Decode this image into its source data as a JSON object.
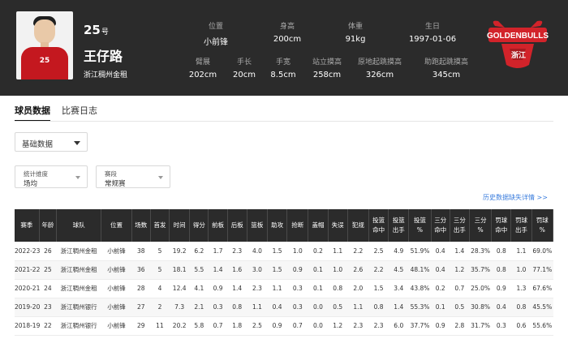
{
  "player": {
    "number": "25",
    "number_suffix": "号",
    "name": "王仔路",
    "team": "浙江稠州金租",
    "jersey_text": "25"
  },
  "header_stats_row1": [
    {
      "label": "位置",
      "value": "小前锋"
    },
    {
      "label": "身高",
      "value": "200cm"
    },
    {
      "label": "体重",
      "value": "91kg"
    },
    {
      "label": "生日",
      "value": "1997-01-06"
    }
  ],
  "header_stats_row2": [
    {
      "label": "臂展",
      "value": "202cm"
    },
    {
      "label": "手长",
      "value": "20cm"
    },
    {
      "label": "手宽",
      "value": "8.5cm"
    },
    {
      "label": "站立摸高",
      "value": "258cm"
    },
    {
      "label": "原地起跳摸高",
      "value": "326cm"
    },
    {
      "label": "助跑起跳摸高",
      "value": "345cm"
    }
  ],
  "logo": {
    "text_top": "GOLDENBULLS",
    "text_bottom": "浙江",
    "color": "#d2232a"
  },
  "tabs": [
    {
      "label": "球员数据",
      "active": true
    },
    {
      "label": "比赛日志",
      "active": false
    }
  ],
  "filters": {
    "basic": {
      "value": "基础数据"
    },
    "dimension": {
      "label": "统计维度",
      "value": "场均"
    },
    "phase": {
      "label": "赛段",
      "value": "常规赛"
    }
  },
  "history_link": "历史数据缺失详情 >>",
  "table": {
    "headers": [
      [
        "赛季"
      ],
      [
        "年龄"
      ],
      [
        "球队"
      ],
      [
        "位置"
      ],
      [
        "场数"
      ],
      [
        "首发"
      ],
      [
        "时间"
      ],
      [
        "得分"
      ],
      [
        "前板"
      ],
      [
        "后板"
      ],
      [
        "篮板"
      ],
      [
        "助攻"
      ],
      [
        "抢断"
      ],
      [
        "盖帽"
      ],
      [
        "失误"
      ],
      [
        "犯规"
      ],
      [
        "投篮",
        "命中"
      ],
      [
        "投篮",
        "出手"
      ],
      [
        "投篮",
        "%"
      ],
      [
        "三分",
        "命中"
      ],
      [
        "三分",
        "出手"
      ],
      [
        "三分",
        "%"
      ],
      [
        "罚球",
        "命中"
      ],
      [
        "罚球",
        "出手"
      ],
      [
        "罚球",
        "%"
      ]
    ],
    "rows": [
      [
        "2022-23",
        "26",
        "浙江稠州金租",
        "小前锋",
        "38",
        "5",
        "19.2",
        "6.2",
        "1.7",
        "2.3",
        "4.0",
        "1.5",
        "1.0",
        "0.2",
        "1.1",
        "2.2",
        "2.5",
        "4.9",
        "51.9%",
        "0.4",
        "1.4",
        "28.3%",
        "0.8",
        "1.1",
        "69.0%"
      ],
      [
        "2021-22",
        "25",
        "浙江稠州金租",
        "小前锋",
        "36",
        "5",
        "18.1",
        "5.5",
        "1.4",
        "1.6",
        "3.0",
        "1.5",
        "0.9",
        "0.1",
        "1.0",
        "2.6",
        "2.2",
        "4.5",
        "48.1%",
        "0.4",
        "1.2",
        "35.7%",
        "0.8",
        "1.0",
        "77.1%"
      ],
      [
        "2020-21",
        "24",
        "浙江稠州金租",
        "小前锋",
        "28",
        "4",
        "12.4",
        "4.1",
        "0.9",
        "1.4",
        "2.3",
        "1.1",
        "0.3",
        "0.1",
        "0.8",
        "2.0",
        "1.5",
        "3.4",
        "43.8%",
        "0.2",
        "0.7",
        "25.0%",
        "0.9",
        "1.3",
        "67.6%"
      ],
      [
        "2019-20",
        "23",
        "浙江稠州银行",
        "小前锋",
        "27",
        "2",
        "7.3",
        "2.1",
        "0.3",
        "0.8",
        "1.1",
        "0.4",
        "0.3",
        "0.0",
        "0.5",
        "1.1",
        "0.8",
        "1.4",
        "55.3%",
        "0.1",
        "0.5",
        "30.8%",
        "0.4",
        "0.8",
        "45.5%"
      ],
      [
        "2018-19",
        "22",
        "浙江稠州银行",
        "小前锋",
        "29",
        "11",
        "20.2",
        "5.8",
        "0.7",
        "1.8",
        "2.5",
        "0.9",
        "0.7",
        "0.0",
        "1.2",
        "2.3",
        "2.3",
        "6.0",
        "37.7%",
        "0.9",
        "2.8",
        "31.7%",
        "0.3",
        "0.6",
        "55.6%"
      ]
    ]
  }
}
